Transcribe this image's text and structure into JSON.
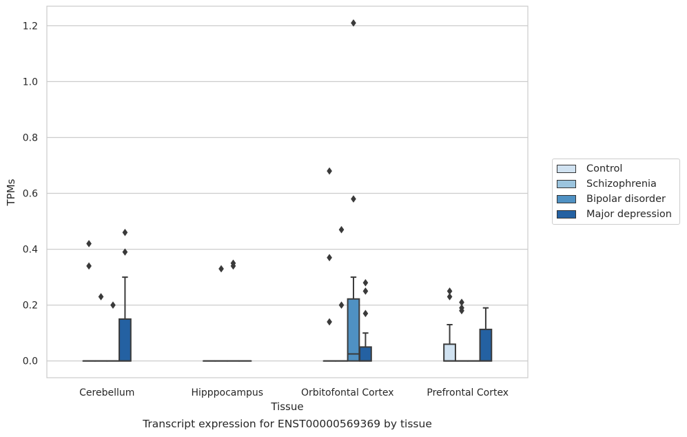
{
  "chart_data": {
    "type": "boxplot",
    "caption": "Transcript expression for ENST00000569369 by tissue",
    "xlabel": "Tissue",
    "ylabel": "TPMs",
    "ylim": [
      -0.06,
      1.27
    ],
    "yticks": [
      "0.0",
      "0.2",
      "0.4",
      "0.6",
      "0.8",
      "1.0",
      "1.2"
    ],
    "grid": "horizontal",
    "legend_position": "right",
    "categories": [
      "Cerebellum",
      "Hipppocampus",
      "Orbitofontal Cortex",
      "Prefrontal Cortex"
    ],
    "series": [
      {
        "name": "Control",
        "color": "#d0e2f1",
        "boxes": [
          {
            "q1": 0,
            "median": 0,
            "q3": 0,
            "whisker_low": 0,
            "whisker_high": 0,
            "outliers": [
              0.42,
              0.34
            ]
          },
          {
            "q1": 0,
            "median": 0,
            "q3": 0,
            "whisker_low": 0,
            "whisker_high": 0,
            "outliers": []
          },
          {
            "q1": 0,
            "median": 0,
            "q3": 0,
            "whisker_low": 0,
            "whisker_high": 0,
            "outliers": [
              0.68,
              0.37,
              0.14
            ]
          },
          {
            "q1": 0,
            "median": 0,
            "q3": 0.06,
            "whisker_low": 0,
            "whisker_high": 0.13,
            "outliers": [
              0.25,
              0.23
            ]
          }
        ]
      },
      {
        "name": "Schizophrenia",
        "color": "#9bc4de",
        "boxes": [
          {
            "q1": 0,
            "median": 0,
            "q3": 0,
            "whisker_low": 0,
            "whisker_high": 0,
            "outliers": [
              0.23
            ]
          },
          {
            "q1": 0,
            "median": 0,
            "q3": 0,
            "whisker_low": 0,
            "whisker_high": 0,
            "outliers": [
              0.33
            ]
          },
          {
            "q1": 0,
            "median": 0,
            "q3": 0,
            "whisker_low": 0,
            "whisker_high": 0,
            "outliers": [
              0.47,
              0.2
            ]
          },
          {
            "q1": 0,
            "median": 0,
            "q3": 0,
            "whisker_low": 0,
            "whisker_high": 0,
            "outliers": [
              0.21,
              0.19,
              0.18
            ]
          }
        ]
      },
      {
        "name": "Bipolar disorder",
        "color": "#4f91c3",
        "boxes": [
          {
            "q1": 0,
            "median": 0,
            "q3": 0,
            "whisker_low": 0,
            "whisker_high": 0,
            "outliers": [
              0.2
            ]
          },
          {
            "q1": 0,
            "median": 0,
            "q3": 0,
            "whisker_low": 0,
            "whisker_high": 0,
            "outliers": [
              0.35,
              0.34
            ]
          },
          {
            "q1": 0,
            "median": 0.025,
            "q3": 0.222,
            "whisker_low": 0,
            "whisker_high": 0.3,
            "outliers": [
              1.21,
              0.58
            ]
          },
          {
            "q1": 0,
            "median": 0,
            "q3": 0,
            "whisker_low": 0,
            "whisker_high": 0,
            "outliers": []
          }
        ]
      },
      {
        "name": "Major depression",
        "color": "#2461a2",
        "boxes": [
          {
            "q1": 0,
            "median": 0,
            "q3": 0.15,
            "whisker_low": 0,
            "whisker_high": 0.3,
            "outliers": [
              0.46,
              0.39
            ]
          },
          {
            "q1": 0,
            "median": 0,
            "q3": 0,
            "whisker_low": 0,
            "whisker_high": 0,
            "outliers": []
          },
          {
            "q1": 0,
            "median": 0,
            "q3": 0.05,
            "whisker_low": 0,
            "whisker_high": 0.1,
            "outliers": [
              0.28,
              0.25,
              0.17
            ]
          },
          {
            "q1": 0,
            "median": 0,
            "q3": 0.113,
            "whisker_low": 0,
            "whisker_high": 0.19,
            "outliers": []
          }
        ]
      }
    ]
  }
}
